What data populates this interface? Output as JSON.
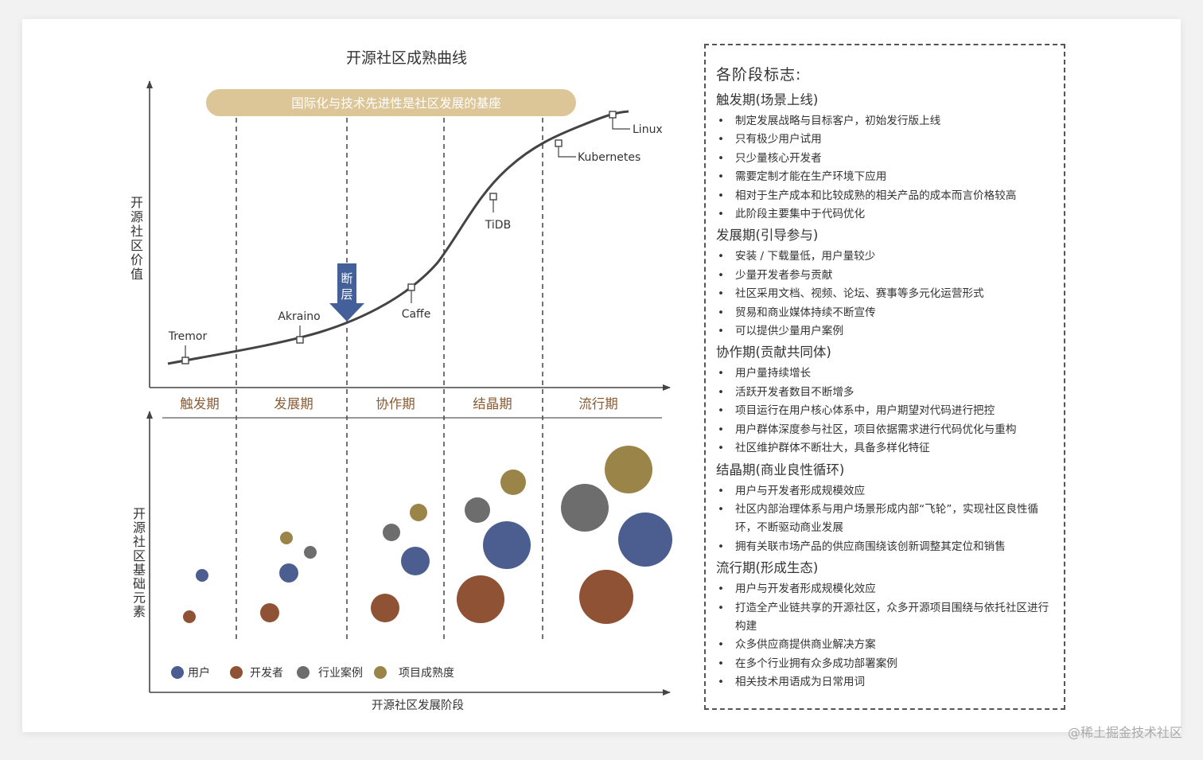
{
  "diagram": {
    "title": "开源社区成熟曲线",
    "banner": "国际化与技术先进性是社区发展的基座",
    "upper_y_label": "开源社区价值",
    "lower_y_label": "开源社区基础元素",
    "x_label": "开源社区发展阶段",
    "gap_label": "断层",
    "stages": [
      "触发期",
      "发展期",
      "协作期",
      "结晶期",
      "流行期"
    ],
    "projects": [
      "Tremor",
      "Akraino",
      "Caffe",
      "TiDB",
      "Kubernetes",
      "Linux"
    ],
    "legend": [
      {
        "name": "用户",
        "color": "#4b5e8f"
      },
      {
        "name": "开发者",
        "color": "#8f5234"
      },
      {
        "name": "行业案例",
        "color": "#6d6d6d"
      },
      {
        "name": "项目成熟度",
        "color": "#9a8448"
      }
    ],
    "colors": {
      "banner": "#dcc698",
      "stage_text": "#8a5a34",
      "arrow": "#44609a",
      "curve": "#444444"
    }
  },
  "panel": {
    "title": "各阶段标志:",
    "stages": [
      {
        "title": "触发期(场景上线)",
        "items": [
          "制定发展战略与目标客户，初始发行版上线",
          "只有极少用户试用",
          "只少量核心开发者",
          "需要定制才能在生产环境下应用",
          "相对于生产成本和比较成熟的相关产品的成本而言价格较高",
          "此阶段主要集中于代码优化"
        ]
      },
      {
        "title": "发展期(引导参与)",
        "items": [
          "安装 / 下载量低，用户量较少",
          "少量开发者参与贡献",
          "社区采用文档、视频、论坛、赛事等多元化运营形式",
          "贸易和商业媒体持续不断宣传",
          "可以提供少量用户案例"
        ]
      },
      {
        "title": "协作期(贡献共同体)",
        "items": [
          "用户量持续增长",
          "活跃开发者数目不断增多",
          "项目运行在用户核心体系中，用户期望对代码进行把控",
          "用户群体深度参与社区，项目依据需求进行代码优化与重构",
          "社区维护群体不断壮大，具备多样化特征"
        ]
      },
      {
        "title": "结晶期(商业良性循环)",
        "items": [
          "用户与开发者形成规模效应",
          "社区内部治理体系与用户场景形成内部“飞轮”，实现社区良性循环，不断驱动商业发展",
          "拥有关联市场产品的供应商围绕该创新调整其定位和销售"
        ]
      },
      {
        "title": "流行期(形成生态)",
        "items": [
          "用户与开发者形成规模化效应",
          "打造全产业链共享的开源社区，众多开源项目围绕与依托社区进行构建",
          "众多供应商提供商业解决方案",
          "在多个行业拥有众多成功部署案例",
          "相关技术用语成为日常用词"
        ]
      }
    ]
  },
  "watermark": "@稀土掘金技术社区"
}
